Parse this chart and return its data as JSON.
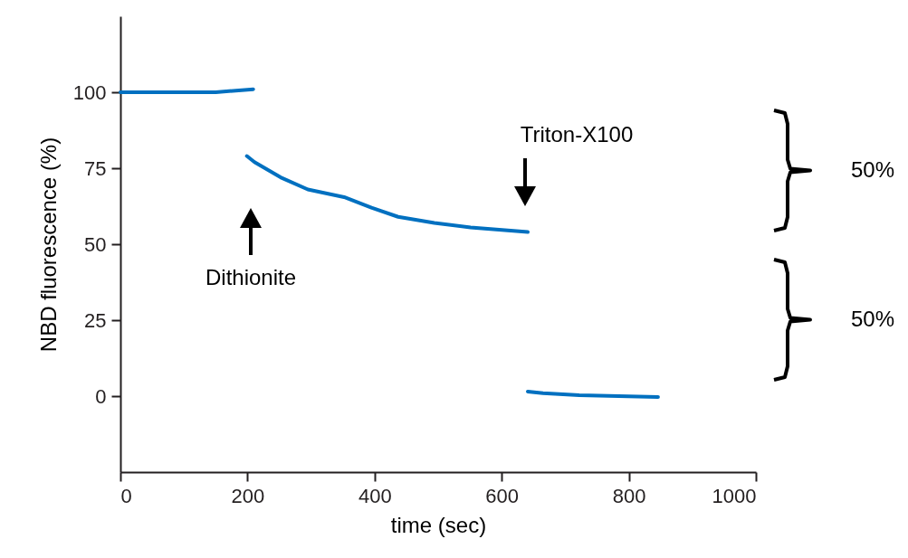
{
  "chart_data": {
    "type": "line",
    "xlabel": "time (sec)",
    "ylabel": "NBD fluorescence (%)",
    "xlim": [
      0,
      1000
    ],
    "xticks": [
      0,
      200,
      400,
      600,
      800,
      1000
    ],
    "ylim": [
      -25,
      125
    ],
    "yticks": [
      0,
      25,
      50,
      75,
      100
    ],
    "grid": false,
    "marker": "none",
    "line_style": "solid",
    "series": [
      {
        "color": "#0070c0",
        "x": [
          0,
          50,
          100,
          150,
          209,
          null,
          199,
          211,
          252,
          295,
          352,
          395,
          437,
          494,
          551,
          641,
          null,
          641,
          665,
          722,
          846
        ],
        "values": [
          100,
          100,
          100,
          100,
          101,
          null,
          79,
          77,
          72,
          68,
          65.5,
          62,
          59,
          57,
          55.5,
          54,
          null,
          1.5,
          1,
          0.3,
          -0.3
        ]
      }
    ],
    "annotations": [
      "Dithionite",
      "Triton-X100",
      "50%",
      "50%"
    ]
  }
}
